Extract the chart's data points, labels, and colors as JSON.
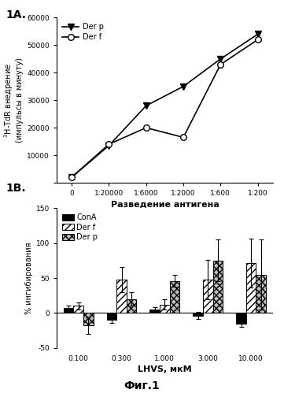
{
  "fig_width": 3.61,
  "fig_height": 4.99,
  "dpi": 100,
  "panel_a_label": "1A.",
  "panel_b_label": "1B.",
  "line_x_labels": [
    "0",
    "1:20000",
    "1:6000",
    "1:2000",
    "1:600",
    "1:200"
  ],
  "line_x_positions": [
    0,
    1,
    2,
    3,
    4,
    5
  ],
  "der_p_y": [
    2000,
    13500,
    28000,
    35000,
    45000,
    54000
  ],
  "der_f_y": [
    2000,
    14000,
    20000,
    16500,
    43000,
    52000
  ],
  "line_ylabel": "$^3$H-TdR внедрение\n(импульсы в минуту)",
  "line_xlabel": "Разведение антигена",
  "line_ylim": [
    0,
    60000
  ],
  "line_yticks": [
    0,
    10000,
    20000,
    30000,
    40000,
    50000,
    60000
  ],
  "bar_categories": [
    "0.100",
    "0.300",
    "1.000",
    "3.000",
    "10.000"
  ],
  "bar_x_positions": [
    0,
    1,
    2,
    3,
    4
  ],
  "conA_values": [
    7,
    -10,
    5,
    -4,
    -15
  ],
  "conA_errors": [
    3,
    4,
    3,
    5,
    5
  ],
  "derf_values": [
    10,
    48,
    12,
    48,
    72
  ],
  "derf_errors": [
    5,
    18,
    7,
    28,
    35
  ],
  "derp_values": [
    -18,
    20,
    46,
    75,
    55
  ],
  "derp_errors": [
    12,
    10,
    8,
    30,
    50
  ],
  "bar_ylabel": "% ингибирования",
  "bar_xlabel": "LHVS, мкМ",
  "bar_ylim": [
    -50,
    150
  ],
  "bar_yticks": [
    -50,
    0,
    50,
    100,
    150
  ],
  "fig_label": "Фиг.1",
  "legend_line_derp": "Der p",
  "legend_line_derf": "Der f",
  "legend_bar_conA": "ConA",
  "legend_bar_derf": "Der f",
  "legend_bar_derp": "Der p"
}
